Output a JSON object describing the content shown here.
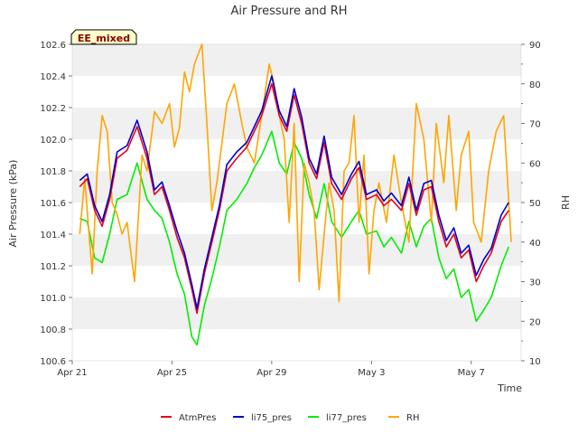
{
  "chart_data": {
    "type": "line",
    "title": "Air Pressure and RH",
    "annotation": "EE_mixed",
    "xlabel": "Time",
    "ylabel_left": "Air Pressure (kPa)",
    "ylabel_right": "RH",
    "x_ticks": [
      {
        "label": "Apr 21",
        "value": 0
      },
      {
        "label": "Apr 25",
        "value": 4
      },
      {
        "label": "Apr 29",
        "value": 8
      },
      {
        "label": "May 3",
        "value": 12
      },
      {
        "label": "May 7",
        "value": 16
      }
    ],
    "xlim": [
      0,
      18
    ],
    "ylim_left": [
      100.6,
      102.6
    ],
    "ylim_right": [
      10,
      90
    ],
    "y_ticks_left": [
      "100.6",
      "100.8",
      "101.0",
      "101.2",
      "101.4",
      "101.6",
      "101.8",
      "102.0",
      "102.2",
      "102.4",
      "102.6"
    ],
    "y_ticks_right": [
      "10",
      "20",
      "30",
      "40",
      "50",
      "60",
      "70",
      "80",
      "90"
    ],
    "grid": "horizontal bands",
    "legend_position": "bottom-center",
    "series": [
      {
        "name": "AtmPres",
        "axis": "left",
        "color": "#e8001c",
        "x": [
          0.3,
          0.6,
          0.9,
          1.2,
          1.5,
          1.8,
          2.2,
          2.6,
          3.0,
          3.3,
          3.6,
          3.9,
          4.2,
          4.5,
          4.8,
          5.0,
          5.3,
          5.6,
          5.9,
          6.2,
          6.6,
          7.0,
          7.3,
          7.6,
          8.0,
          8.3,
          8.6,
          8.9,
          9.2,
          9.5,
          9.8,
          10.1,
          10.4,
          10.8,
          11.2,
          11.5,
          11.8,
          12.2,
          12.5,
          12.8,
          13.2,
          13.5,
          13.8,
          14.1,
          14.4,
          14.7,
          15.0,
          15.3,
          15.6,
          15.9,
          16.2,
          16.5,
          16.8,
          17.2,
          17.5
        ],
        "y": [
          101.7,
          101.75,
          101.55,
          101.45,
          101.62,
          101.88,
          101.93,
          102.08,
          101.88,
          101.65,
          101.7,
          101.55,
          101.38,
          101.25,
          101.05,
          100.9,
          101.15,
          101.35,
          101.55,
          101.8,
          101.88,
          101.95,
          102.05,
          102.15,
          102.35,
          102.15,
          102.05,
          102.28,
          102.1,
          101.85,
          101.75,
          101.98,
          101.72,
          101.62,
          101.75,
          101.82,
          101.62,
          101.65,
          101.58,
          101.62,
          101.55,
          101.72,
          101.52,
          101.68,
          101.7,
          101.48,
          101.32,
          101.4,
          101.25,
          101.3,
          101.1,
          101.2,
          101.28,
          101.48,
          101.55
        ]
      },
      {
        "name": "li75_pres",
        "axis": "left",
        "color": "#0000cc",
        "x": [
          0.3,
          0.6,
          0.9,
          1.2,
          1.5,
          1.8,
          2.2,
          2.6,
          3.0,
          3.3,
          3.6,
          3.9,
          4.2,
          4.5,
          4.8,
          5.0,
          5.3,
          5.6,
          5.9,
          6.2,
          6.6,
          7.0,
          7.3,
          7.6,
          8.0,
          8.3,
          8.6,
          8.9,
          9.2,
          9.5,
          9.8,
          10.1,
          10.4,
          10.8,
          11.2,
          11.5,
          11.8,
          12.2,
          12.5,
          12.8,
          13.2,
          13.5,
          13.8,
          14.1,
          14.4,
          14.7,
          15.0,
          15.3,
          15.6,
          15.9,
          16.2,
          16.5,
          16.8,
          17.2,
          17.5
        ],
        "y": [
          101.74,
          101.78,
          101.58,
          101.48,
          101.65,
          101.92,
          101.96,
          102.12,
          101.92,
          101.68,
          101.73,
          101.58,
          101.42,
          101.28,
          101.08,
          100.93,
          101.18,
          101.38,
          101.58,
          101.84,
          101.92,
          101.98,
          102.08,
          102.18,
          102.4,
          102.18,
          102.08,
          102.32,
          102.14,
          101.88,
          101.78,
          102.02,
          101.76,
          101.65,
          101.78,
          101.86,
          101.65,
          101.68,
          101.61,
          101.66,
          101.58,
          101.76,
          101.55,
          101.72,
          101.74,
          101.52,
          101.36,
          101.44,
          101.28,
          101.33,
          101.14,
          101.24,
          101.31,
          101.52,
          101.6
        ]
      },
      {
        "name": "li77_pres",
        "axis": "left",
        "color": "#00ee00",
        "x": [
          0.3,
          0.6,
          0.9,
          1.2,
          1.5,
          1.8,
          2.2,
          2.6,
          3.0,
          3.3,
          3.6,
          3.9,
          4.2,
          4.5,
          4.8,
          5.0,
          5.3,
          5.6,
          5.9,
          6.2,
          6.6,
          7.0,
          7.3,
          7.6,
          8.0,
          8.3,
          8.6,
          8.9,
          9.2,
          9.5,
          9.8,
          10.1,
          10.4,
          10.8,
          11.2,
          11.5,
          11.8,
          12.2,
          12.5,
          12.8,
          13.2,
          13.5,
          13.8,
          14.1,
          14.4,
          14.7,
          15.0,
          15.3,
          15.6,
          15.9,
          16.2,
          16.5,
          16.8,
          17.2,
          17.5
        ],
        "y": [
          101.5,
          101.48,
          101.25,
          101.22,
          101.4,
          101.62,
          101.65,
          101.85,
          101.62,
          101.55,
          101.5,
          101.35,
          101.15,
          101.02,
          100.75,
          100.7,
          100.95,
          101.12,
          101.32,
          101.55,
          101.62,
          101.72,
          101.82,
          101.9,
          102.05,
          101.85,
          101.78,
          101.98,
          101.88,
          101.65,
          101.5,
          101.72,
          101.48,
          101.38,
          101.48,
          101.55,
          101.4,
          101.42,
          101.32,
          101.38,
          101.28,
          101.48,
          101.32,
          101.45,
          101.5,
          101.25,
          101.12,
          101.18,
          101.0,
          101.05,
          100.85,
          100.92,
          101.0,
          101.2,
          101.32
        ]
      },
      {
        "name": "RH",
        "axis": "right",
        "color": "#ffa500",
        "x": [
          0.3,
          0.5,
          0.8,
          1.0,
          1.2,
          1.4,
          1.6,
          1.8,
          2.0,
          2.2,
          2.5,
          2.8,
          3.0,
          3.3,
          3.6,
          3.9,
          4.1,
          4.3,
          4.5,
          4.7,
          4.9,
          5.2,
          5.4,
          5.6,
          5.8,
          6.0,
          6.2,
          6.5,
          6.8,
          7.0,
          7.3,
          7.6,
          7.9,
          8.1,
          8.3,
          8.5,
          8.7,
          8.9,
          9.1,
          9.3,
          9.5,
          9.7,
          9.9,
          10.1,
          10.3,
          10.5,
          10.7,
          10.9,
          11.1,
          11.3,
          11.5,
          11.7,
          11.9,
          12.1,
          12.3,
          12.6,
          12.9,
          13.2,
          13.5,
          13.8,
          14.1,
          14.4,
          14.6,
          14.9,
          15.1,
          15.4,
          15.6,
          15.9,
          16.1,
          16.4,
          16.7,
          17.0,
          17.3,
          17.6
        ],
        "y": [
          42,
          56,
          32,
          58,
          72,
          68,
          50,
          47,
          42,
          45,
          30,
          62,
          58,
          73,
          70,
          75,
          64,
          69,
          83,
          78,
          85,
          90,
          70,
          48,
          55,
          65,
          75,
          80,
          70,
          64,
          60,
          72,
          85,
          80,
          72,
          66,
          45,
          70,
          30,
          60,
          55,
          48,
          28,
          42,
          55,
          48,
          25,
          58,
          60,
          72,
          45,
          62,
          32,
          48,
          55,
          45,
          62,
          50,
          40,
          75,
          66,
          45,
          70,
          55,
          72,
          48,
          62,
          68,
          45,
          40,
          58,
          68,
          72,
          40
        ]
      }
    ]
  }
}
